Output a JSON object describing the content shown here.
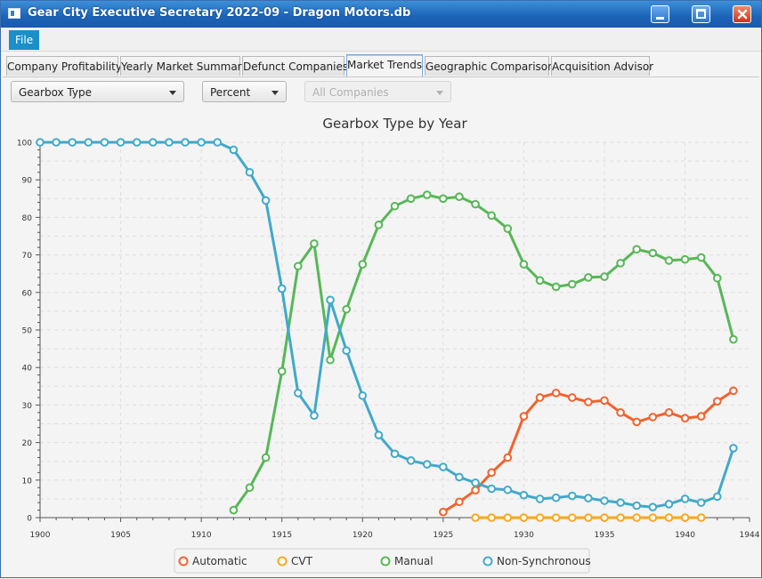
{
  "window": {
    "title": "Gear City Executive Secretary 2022-09 - Dragon Motors.db"
  },
  "menu": {
    "file": "File"
  },
  "tabs": [
    "Company Profitability",
    "Yearly Market Summary",
    "Defunct Companies",
    "Market Trends",
    "Geographic Comparison",
    "Acquisition Advisor"
  ],
  "active_tab": "Market Trends",
  "controls": {
    "category": "Gearbox Type",
    "mode": "Percent",
    "company": "All Companies"
  },
  "colors": {
    "Automatic": "#f3622d",
    "CVT": "#fba71b",
    "Manual": "#57b757",
    "Non-Synchronous": "#41a9c9"
  },
  "chart_data": {
    "type": "line",
    "title": "Gearbox Type by Year",
    "xlabel": "",
    "ylabel": "",
    "xlim": [
      1900,
      1944
    ],
    "ylim": [
      0,
      100
    ],
    "x_ticks": [
      1900,
      1905,
      1910,
      1915,
      1920,
      1925,
      1930,
      1935,
      1940,
      1944
    ],
    "y_ticks": [
      0,
      10,
      20,
      30,
      40,
      50,
      60,
      70,
      80,
      90,
      100
    ],
    "grid": true,
    "legend": "bottom",
    "series": [
      {
        "name": "Automatic",
        "points": [
          [
            1925,
            1.5
          ],
          [
            1926,
            4.2
          ],
          [
            1927,
            7.3
          ],
          [
            1928,
            12
          ],
          [
            1929,
            16
          ],
          [
            1930,
            27
          ],
          [
            1931,
            32
          ],
          [
            1932,
            33.2
          ],
          [
            1933,
            32
          ],
          [
            1934,
            30.8
          ],
          [
            1935,
            31.2
          ],
          [
            1936,
            28
          ],
          [
            1937,
            25.5
          ],
          [
            1938,
            26.8
          ],
          [
            1939,
            28
          ],
          [
            1940,
            26.5
          ],
          [
            1941,
            27
          ],
          [
            1942,
            31
          ],
          [
            1943,
            33.8
          ]
        ]
      },
      {
        "name": "CVT",
        "points": [
          [
            1927,
            0
          ],
          [
            1928,
            0
          ],
          [
            1929,
            0
          ],
          [
            1930,
            0
          ],
          [
            1931,
            0
          ],
          [
            1932,
            0
          ],
          [
            1933,
            0
          ],
          [
            1934,
            0
          ],
          [
            1935,
            0
          ],
          [
            1936,
            0
          ],
          [
            1937,
            0
          ],
          [
            1938,
            0
          ],
          [
            1939,
            0
          ],
          [
            1940,
            0
          ],
          [
            1941,
            0
          ]
        ]
      },
      {
        "name": "Manual",
        "points": [
          [
            1912,
            2
          ],
          [
            1913,
            8
          ],
          [
            1914,
            16
          ],
          [
            1915,
            39
          ],
          [
            1916,
            67
          ],
          [
            1917,
            73
          ],
          [
            1918,
            42
          ],
          [
            1919,
            55.5
          ],
          [
            1920,
            67.5
          ],
          [
            1921,
            78
          ],
          [
            1922,
            83
          ],
          [
            1923,
            85
          ],
          [
            1924,
            86
          ],
          [
            1925,
            85
          ],
          [
            1926,
            85.5
          ],
          [
            1927,
            83.5
          ],
          [
            1928,
            80.5
          ],
          [
            1929,
            77
          ],
          [
            1930,
            67.5
          ],
          [
            1931,
            63.2
          ],
          [
            1932,
            61.5
          ],
          [
            1933,
            62.2
          ],
          [
            1934,
            64
          ],
          [
            1935,
            64.2
          ],
          [
            1936,
            67.8
          ],
          [
            1937,
            71.5
          ],
          [
            1938,
            70.5
          ],
          [
            1939,
            68.5
          ],
          [
            1940,
            68.8
          ],
          [
            1941,
            69.3
          ],
          [
            1942,
            63.8
          ],
          [
            1943,
            47.5
          ]
        ]
      },
      {
        "name": "Non-Synchronous",
        "points": [
          [
            1900,
            100
          ],
          [
            1901,
            100
          ],
          [
            1902,
            100
          ],
          [
            1903,
            100
          ],
          [
            1904,
            100
          ],
          [
            1905,
            100
          ],
          [
            1906,
            100
          ],
          [
            1907,
            100
          ],
          [
            1908,
            100
          ],
          [
            1909,
            100
          ],
          [
            1910,
            100
          ],
          [
            1911,
            100
          ],
          [
            1912,
            98
          ],
          [
            1913,
            92
          ],
          [
            1914,
            84.5
          ],
          [
            1915,
            61
          ],
          [
            1916,
            33.2
          ],
          [
            1917,
            27.2
          ],
          [
            1918,
            58
          ],
          [
            1919,
            44.5
          ],
          [
            1920,
            32.5
          ],
          [
            1921,
            22
          ],
          [
            1922,
            17
          ],
          [
            1923,
            15.2
          ],
          [
            1924,
            14.2
          ],
          [
            1925,
            13.5
          ],
          [
            1926,
            10.8
          ],
          [
            1927,
            9.3
          ],
          [
            1928,
            7.7
          ],
          [
            1929,
            7.4
          ],
          [
            1930,
            6
          ],
          [
            1931,
            5
          ],
          [
            1932,
            5.3
          ],
          [
            1933,
            5.8
          ],
          [
            1934,
            5.2
          ],
          [
            1935,
            4.5
          ],
          [
            1936,
            4
          ],
          [
            1937,
            3.2
          ],
          [
            1938,
            2.8
          ],
          [
            1939,
            3.6
          ],
          [
            1940,
            5
          ],
          [
            1941,
            4
          ],
          [
            1942,
            5.6
          ],
          [
            1943,
            18.5
          ]
        ]
      }
    ]
  }
}
